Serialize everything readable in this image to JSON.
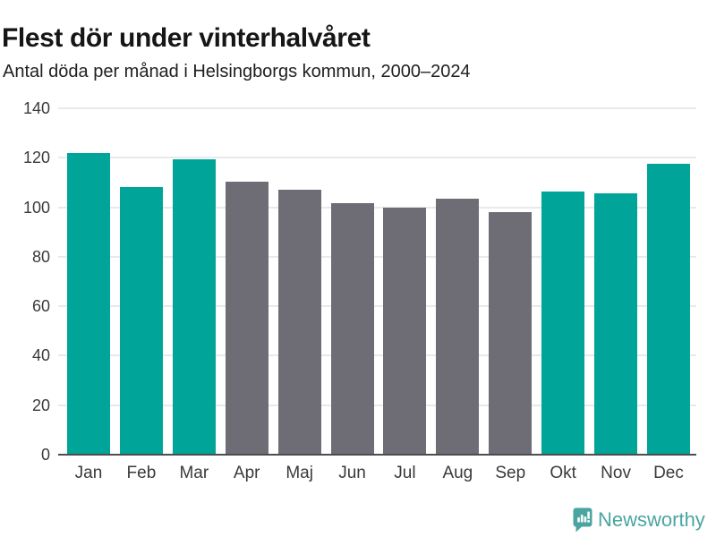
{
  "header": {
    "title": "Flest dör under vinterhalvåret",
    "subtitle": "Antal döda per månad i Helsingborgs kommun, 2000–2024"
  },
  "chart_data": {
    "type": "bar",
    "title": "Flest dör under vinterhalvåret",
    "subtitle": "Antal döda per månad i Helsingborgs kommun, 2000–2024",
    "categories": [
      "Jan",
      "Feb",
      "Mar",
      "Apr",
      "Maj",
      "Jun",
      "Jul",
      "Aug",
      "Sep",
      "Okt",
      "Nov",
      "Dec"
    ],
    "values": [
      122,
      108,
      119.5,
      110.5,
      107,
      101.5,
      100,
      103.5,
      98,
      106.5,
      105.5,
      117.5
    ],
    "series_color_keys": [
      "winter",
      "winter",
      "winter",
      "summer",
      "summer",
      "summer",
      "summer",
      "summer",
      "summer",
      "winter",
      "winter",
      "winter"
    ],
    "xlabel": "",
    "ylabel": "",
    "ylim": [
      0,
      140
    ],
    "yticks": [
      0,
      20,
      40,
      60,
      80,
      100,
      120,
      140
    ],
    "grid": true,
    "legend": false
  },
  "colors": {
    "winter_bar": "#00a498",
    "summer_bar": "#6e6c74",
    "gridline": "#e9e9e9",
    "axis_line": "#4d4d4d",
    "title_text": "#161616",
    "subtitle_text": "#1f1f1f",
    "tick_text": "#3a3a3a",
    "brand_teal": "#4aa5a0"
  },
  "footer": {
    "brand_name": "Newsworthy",
    "brand_icon": "newsworthy-speech-bubble-bar-chart-icon"
  }
}
